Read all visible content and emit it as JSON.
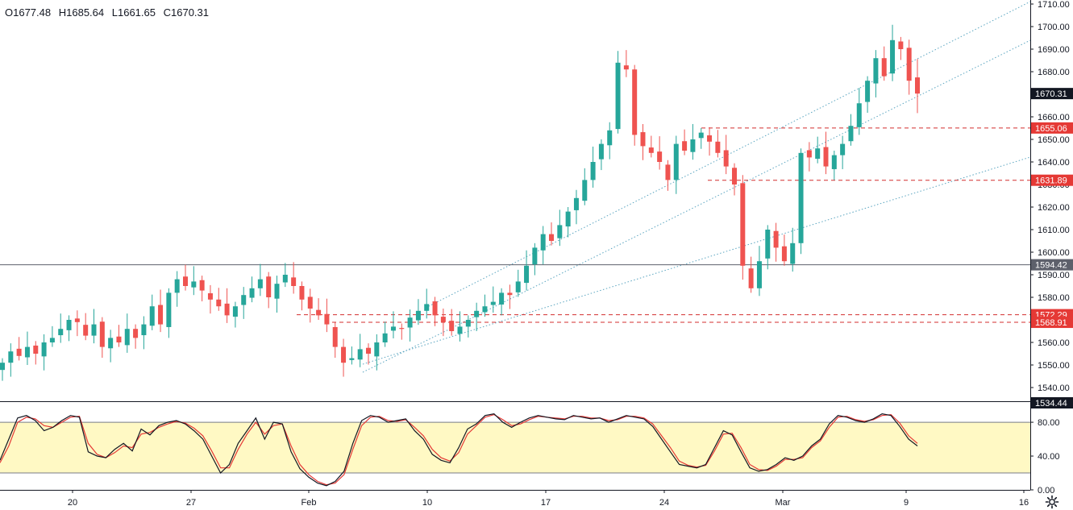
{
  "ohlc": {
    "open": "O1677.48",
    "high": "H1685.64",
    "low": "L1661.65",
    "close": "C1670.31"
  },
  "colors": {
    "up": "#26a69a",
    "down": "#ef5350",
    "line": "#d32f2f",
    "channel": "#5aa5c0",
    "stochK": "#131722",
    "stochD": "#e53935",
    "band": "#fff9c4",
    "axisText": "#131722"
  },
  "price_axis": {
    "ticks": [
      "1710.00",
      "1700.00",
      "1690.00",
      "1680.00",
      "1670.00",
      "1660.00",
      "1650.00",
      "1640.00",
      "1630.00",
      "1620.00",
      "1610.00",
      "1600.00",
      "1590.00",
      "1580.00",
      "1570.00",
      "1560.00",
      "1550.00",
      "1540.00"
    ],
    "labels": [
      {
        "text": "1670.31",
        "price": 1670.31,
        "bg": "#131722",
        "fg": "#ffffff"
      },
      {
        "text": "1655.06",
        "price": 1655.06,
        "bg": "#e53935",
        "fg": "#ffffff"
      },
      {
        "text": "1631.89",
        "price": 1631.89,
        "bg": "#e53935",
        "fg": "#ffffff"
      },
      {
        "text": "1594.42",
        "price": 1594.42,
        "bg": "#5d606b",
        "fg": "#ffffff"
      },
      {
        "text": "1572.29",
        "price": 1572.29,
        "bg": "#e53935",
        "fg": "#ffffff"
      },
      {
        "text": "1568.91",
        "price": 1568.91,
        "bg": "#e53935",
        "fg": "#ffffff"
      },
      {
        "text": "1534.44",
        "price": 1534.44,
        "bg": "#131722",
        "fg": "#ffffff"
      }
    ]
  },
  "stoch_axis": {
    "ticks": [
      "80.00",
      "40.00",
      "0.00"
    ]
  },
  "time_axis": {
    "labels": [
      "20",
      "27",
      "Feb",
      "10",
      "17",
      "24",
      "Mar",
      "9",
      "16"
    ]
  },
  "chart_data": {
    "type": "candlestick",
    "ylim": [
      1535,
      1712
    ],
    "horizontal_levels": [
      {
        "price": 1655.06,
        "style": "dashed",
        "from": "Feb 27"
      },
      {
        "price": 1631.89,
        "style": "dashed",
        "from": "Feb 27"
      },
      {
        "price": 1594.42,
        "style": "solid"
      },
      {
        "price": 1572.29,
        "style": "dashed",
        "from": "Jan 31"
      },
      {
        "price": 1568.91,
        "style": "dashed",
        "from": "Feb 1"
      }
    ],
    "channel": {
      "lines": 3,
      "color": "dotted teal"
    },
    "last": {
      "open": 1677.48,
      "high": 1685.64,
      "low": 1661.65,
      "close": 1670.31
    },
    "path": [
      1551,
      1556,
      1554,
      1558,
      1555,
      1560,
      1562,
      1566,
      1570,
      1569,
      1563,
      1568,
      1558,
      1562,
      1560,
      1566,
      1562,
      1568,
      1576,
      1568,
      1582,
      1588,
      1585,
      1587,
      1583,
      1579,
      1576,
      1572,
      1576,
      1581,
      1584,
      1588,
      1580,
      1586,
      1590,
      1585,
      1579,
      1575,
      1572,
      1568,
      1558,
      1551,
      1553,
      1557,
      1555,
      1560,
      1564,
      1567,
      1566,
      1571,
      1574,
      1577,
      1572,
      1569,
      1565,
      1567,
      1570,
      1574,
      1576,
      1578,
      1582,
      1581,
      1587,
      1594,
      1602,
      1608,
      1605,
      1612,
      1618,
      1624,
      1632,
      1640,
      1648,
      1654,
      1684,
      1681,
      1652,
      1647,
      1644,
      1640,
      1632,
      1648,
      1645,
      1650,
      1653,
      1649,
      1644,
      1638,
      1630,
      1594,
      1584,
      1596,
      1610,
      1602,
      1596,
      1604,
      1644,
      1642,
      1646,
      1638,
      1643,
      1648,
      1656,
      1666,
      1676,
      1686,
      1678,
      1694,
      1690,
      1676,
      1670.31
    ],
    "stoch_k": [
      35,
      60,
      85,
      88,
      82,
      70,
      74,
      82,
      88,
      86,
      45,
      40,
      38,
      48,
      55,
      46,
      72,
      65,
      76,
      80,
      82,
      78,
      70,
      60,
      40,
      20,
      30,
      55,
      70,
      85,
      60,
      80,
      78,
      45,
      25,
      15,
      8,
      5,
      10,
      22,
      55,
      82,
      88,
      86,
      80,
      82,
      84,
      70,
      60,
      42,
      35,
      32,
      50,
      72,
      78,
      88,
      90,
      80,
      74,
      80,
      85,
      88,
      86,
      84,
      83,
      88,
      86,
      84,
      85,
      80,
      84,
      88,
      86,
      84,
      75,
      60,
      45,
      30,
      28,
      26,
      30,
      50,
      70,
      65,
      45,
      26,
      22,
      24,
      30,
      38,
      35,
      40,
      52,
      60,
      78,
      88,
      86,
      82,
      80,
      84,
      90,
      88,
      75,
      60,
      52
    ],
    "stoch_d": [
      32,
      52,
      80,
      86,
      84,
      76,
      74,
      80,
      86,
      87,
      55,
      42,
      38,
      44,
      52,
      50,
      66,
      68,
      74,
      78,
      81,
      79,
      73,
      64,
      46,
      26,
      26,
      48,
      66,
      80,
      66,
      76,
      78,
      52,
      30,
      18,
      10,
      6,
      8,
      18,
      48,
      76,
      86,
      87,
      82,
      81,
      83,
      74,
      64,
      48,
      38,
      34,
      44,
      66,
      76,
      86,
      89,
      83,
      76,
      78,
      83,
      87,
      86,
      85,
      84,
      87,
      87,
      85,
      85,
      82,
      83,
      87,
      87,
      85,
      78,
      64,
      50,
      34,
      29,
      27,
      29,
      46,
      66,
      67,
      50,
      30,
      24,
      23,
      28,
      36,
      36,
      38,
      50,
      58,
      74,
      86,
      87,
      83,
      81,
      83,
      88,
      89,
      79,
      64,
      55
    ]
  }
}
